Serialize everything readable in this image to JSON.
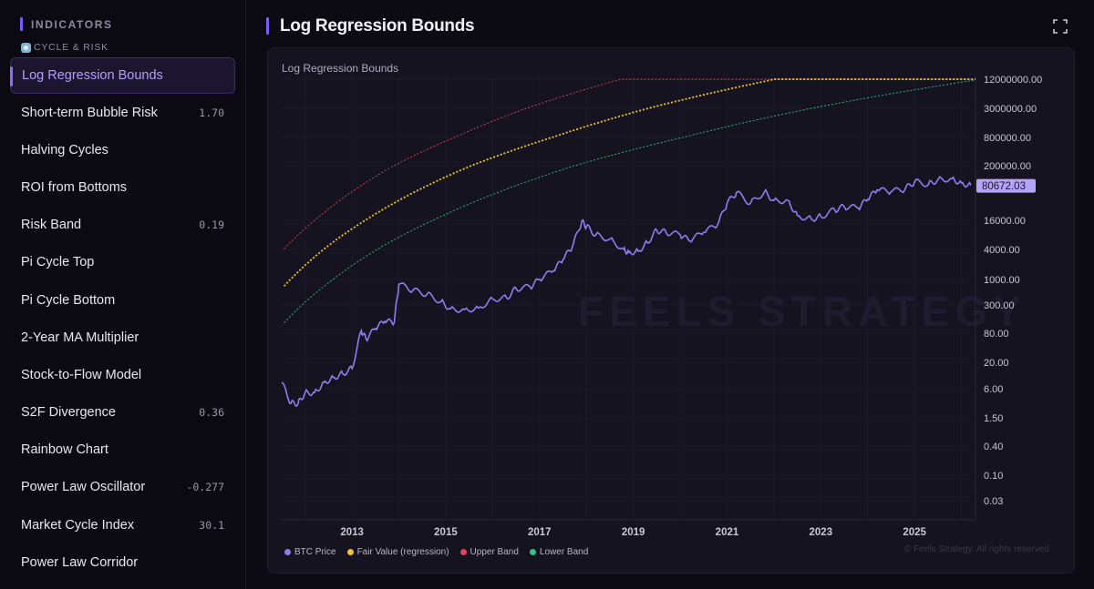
{
  "sidebar": {
    "section_title": "INDICATORS",
    "group_label": "CYCLE & RISK",
    "items": [
      {
        "label": "Log Regression Bounds",
        "value": "",
        "active": true
      },
      {
        "label": "Short-term Bubble Risk",
        "value": "1.70"
      },
      {
        "label": "Halving Cycles",
        "value": ""
      },
      {
        "label": "ROI from Bottoms",
        "value": ""
      },
      {
        "label": "Risk Band",
        "value": "0.19"
      },
      {
        "label": "Pi Cycle Top",
        "value": ""
      },
      {
        "label": "Pi Cycle Bottom",
        "value": ""
      },
      {
        "label": "2-Year MA Multiplier",
        "value": ""
      },
      {
        "label": "Stock-to-Flow Model",
        "value": ""
      },
      {
        "label": "S2F Divergence",
        "value": "0.36"
      },
      {
        "label": "Rainbow Chart",
        "value": ""
      },
      {
        "label": "Power Law Oscillator",
        "value": "-0.277"
      },
      {
        "label": "Market Cycle Index",
        "value": "30.1"
      },
      {
        "label": "Power Law Corridor",
        "value": ""
      }
    ]
  },
  "header": {
    "title": "Log Regression Bounds"
  },
  "panel": {
    "watermark": "FEELS STRATEGY",
    "copyright": "© Feels Strategy. All rights reserved"
  },
  "colors": {
    "btc": "#8f7ef0",
    "fair": "#f2c230",
    "upper": "#e0455f",
    "lower": "#2ec48a",
    "price_tag_bg": "#b3a4f7"
  },
  "chart_data": {
    "type": "line",
    "title": "Log Regression Bounds",
    "y_scale": "log",
    "x_range": [
      2011.5,
      2026.3
    ],
    "y_tick_labels": [
      "12000000.00",
      "3000000.00",
      "800000.00",
      "200000.00",
      "16000.00",
      "4000.00",
      "1000.00",
      "300.00",
      "80.00",
      "20.00",
      "6.00",
      "1.50",
      "0.40",
      "0.10",
      "0.03"
    ],
    "x_tick_labels": [
      "2013",
      "2015",
      "2017",
      "2019",
      "2021",
      "2023",
      "2025"
    ],
    "current_value": "80672.03",
    "legend_position": "bottom-left",
    "series": [
      {
        "name": "BTC Price",
        "color": "#8f7ef0",
        "x": [
          2011.5,
          2011.7,
          2011.85,
          2012.0,
          2012.2,
          2012.4,
          2012.6,
          2012.8,
          2013.0,
          2013.2,
          2013.3,
          2013.5,
          2013.7,
          2013.9,
          2014.0,
          2014.3,
          2014.6,
          2014.9,
          2015.1,
          2015.4,
          2015.7,
          2016.0,
          2016.3,
          2016.5,
          2016.8,
          2017.0,
          2017.3,
          2017.5,
          2017.7,
          2017.9,
          2018.0,
          2018.2,
          2018.5,
          2018.8,
          2018.9,
          2019.1,
          2019.3,
          2019.5,
          2019.7,
          2020.0,
          2020.2,
          2020.5,
          2020.8,
          2021.0,
          2021.2,
          2021.5,
          2021.8,
          2022.0,
          2022.3,
          2022.5,
          2022.8,
          2023.0,
          2023.3,
          2023.5,
          2023.8,
          2024.0,
          2024.2,
          2024.5,
          2024.8,
          2025.0,
          2025.3,
          2025.5,
          2025.8,
          2026.0,
          2026.2
        ],
        "y": [
          8,
          3,
          3,
          5,
          5,
          8,
          10,
          12,
          15,
          90,
          60,
          100,
          140,
          130,
          800,
          600,
          500,
          350,
          250,
          240,
          260,
          400,
          420,
          650,
          700,
          1000,
          1500,
          2500,
          4500,
          15000,
          12000,
          8000,
          6500,
          4000,
          3500,
          3700,
          5500,
          10000,
          9000,
          8000,
          6000,
          9000,
          13000,
          35000,
          58000,
          35000,
          60000,
          40000,
          40000,
          20000,
          17000,
          19000,
          26000,
          30000,
          28000,
          42000,
          65000,
          60000,
          68000,
          95000,
          85000,
          105000,
          110000,
          90000,
          80672
        ]
      },
      {
        "name": "Fair Value (regression)",
        "color": "#f2c230"
      },
      {
        "name": "Upper Band",
        "color": "#e0455f"
      },
      {
        "name": "Lower Band",
        "color": "#2ec48a"
      }
    ]
  }
}
